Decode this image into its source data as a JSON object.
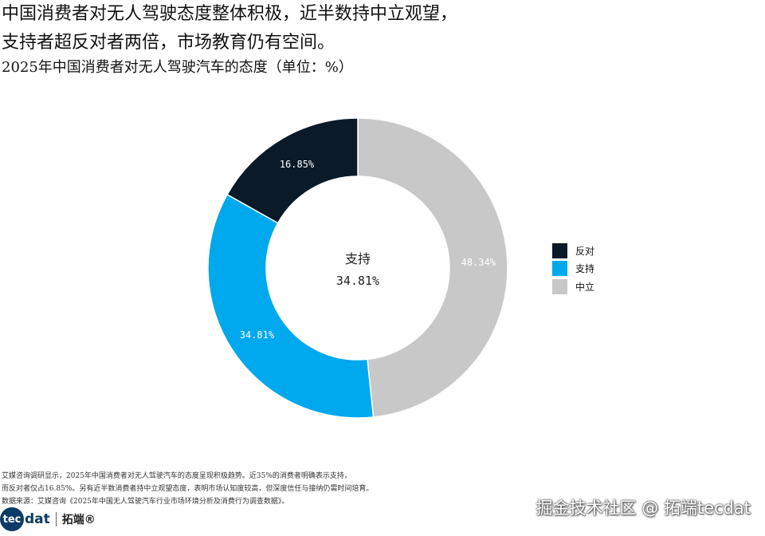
{
  "headline": {
    "line1": "中国消费者对无人驾驶态度整体积极，近半数持中立观望，",
    "line2": "支持者超反对者两倍，市场教育仍有空间。"
  },
  "subtitle": "2025年中国消费者对无人驾驶汽车的态度（单位：%）",
  "chart_data": {
    "type": "pie",
    "variant": "donut",
    "title": "2025年中国消费者对无人驾驶汽车的态度（单位：%）",
    "categories": [
      "中立",
      "支持",
      "反对"
    ],
    "values": [
      48.34,
      34.81,
      16.85
    ],
    "value_labels": [
      "48.34%",
      "34.81%",
      "16.85%"
    ],
    "colors": [
      "#c8c8c8",
      "#00a8ee",
      "#0a1a28"
    ],
    "label_colors": [
      "#ffffff",
      "#ffffff",
      "#ffffff"
    ],
    "center_label": {
      "name": "支持",
      "value": "34.81%"
    },
    "legend": {
      "position": "right",
      "items": [
        {
          "label": "反对",
          "color": "#0a1a28"
        },
        {
          "label": "支持",
          "color": "#00a8ee"
        },
        {
          "label": "中立",
          "color": "#c8c8c8"
        }
      ]
    }
  },
  "notes": {
    "line1": "艾媒咨询调研显示，2025年中国消费者对无人驾驶汽车的态度呈现积极趋势。近35%的消费者明确表示支持，",
    "line2": "而反对者仅占16.85%。另有近半数消费者持中立观望态度，表明市场认知度较高，但深度信任与接纳仍需时间培育。",
    "line3": "数据来源：艾媒咨询《2025年中国无人驾驶汽车行业市场环境分析及消费行为调查数据》。"
  },
  "logo": {
    "circle_text": "tec",
    "text": "dat",
    "cn": "拓端®"
  },
  "watermark": "掘金技术社区 @ 拓端tecdat"
}
